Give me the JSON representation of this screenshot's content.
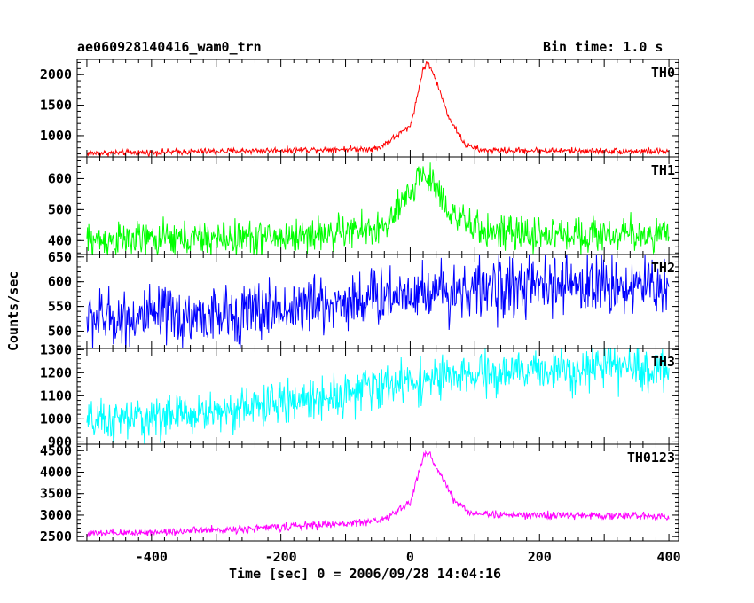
{
  "title": "ae060928140416_wam0_trn",
  "bin_time": "Bin time: 1.0 s",
  "xlabel": "Time [sec] 0 = 2006/09/28 14:04:16",
  "ylabel": "Counts/sec",
  "chart_data": [
    {
      "type": "line",
      "name": "TH0",
      "color": "#ff0000",
      "xlim": [
        -515,
        415
      ],
      "ylim": [
        650,
        2250
      ],
      "yticks": [
        1000,
        1500,
        2000
      ],
      "baseline": [
        [
          -500,
          710
        ],
        [
          -200,
          760
        ],
        [
          -50,
          790
        ],
        [
          0,
          1150
        ],
        [
          10,
          1600
        ],
        [
          20,
          2100
        ],
        [
          28,
          2200
        ],
        [
          40,
          1900
        ],
        [
          60,
          1300
        ],
        [
          85,
          850
        ],
        [
          110,
          760
        ],
        [
          400,
          740
        ]
      ],
      "noise": 25
    },
    {
      "type": "line",
      "name": "TH1",
      "color": "#00ff00",
      "xlim": [
        -515,
        415
      ],
      "ylim": [
        355,
        670
      ],
      "yticks": [
        400,
        500,
        600
      ],
      "baseline": [
        [
          -500,
          400
        ],
        [
          -200,
          410
        ],
        [
          -40,
          440
        ],
        [
          0,
          550
        ],
        [
          15,
          620
        ],
        [
          35,
          590
        ],
        [
          60,
          500
        ],
        [
          90,
          445
        ],
        [
          150,
          420
        ],
        [
          400,
          420
        ]
      ],
      "noise": 28
    },
    {
      "type": "line",
      "name": "TH2",
      "color": "#0000ff",
      "xlim": [
        -515,
        415
      ],
      "ylim": [
        465,
        655
      ],
      "yticks": [
        500,
        550,
        600,
        650
      ],
      "baseline": [
        [
          -500,
          525
        ],
        [
          -300,
          530
        ],
        [
          -200,
          545
        ],
        [
          -100,
          560
        ],
        [
          0,
          580
        ],
        [
          100,
          585
        ],
        [
          200,
          590
        ],
        [
          300,
          595
        ],
        [
          400,
          590
        ]
      ],
      "noise": 30
    },
    {
      "type": "line",
      "name": "TH3",
      "color": "#00ffff",
      "xlim": [
        -515,
        415
      ],
      "ylim": [
        890,
        1305
      ],
      "yticks": [
        900,
        1000,
        1100,
        1200,
        1300
      ],
      "baseline": [
        [
          -500,
          980
        ],
        [
          -300,
          1030
        ],
        [
          -200,
          1070
        ],
        [
          -100,
          1110
        ],
        [
          0,
          1165
        ],
        [
          100,
          1185
        ],
        [
          200,
          1210
        ],
        [
          300,
          1225
        ],
        [
          400,
          1210
        ]
      ],
      "noise": 45
    },
    {
      "type": "line",
      "name": "TH0123",
      "color": "#ff00ff",
      "xlim": [
        -515,
        415
      ],
      "ylim": [
        2400,
        4650
      ],
      "yticks": [
        2500,
        3000,
        3500,
        4000,
        4500
      ],
      "baseline": [
        [
          -500,
          2560
        ],
        [
          -300,
          2650
        ],
        [
          -100,
          2800
        ],
        [
          -40,
          2900
        ],
        [
          0,
          3300
        ],
        [
          10,
          3800
        ],
        [
          22,
          4450
        ],
        [
          30,
          4400
        ],
        [
          45,
          4000
        ],
        [
          70,
          3300
        ],
        [
          95,
          3050
        ],
        [
          150,
          3000
        ],
        [
          400,
          2980
        ]
      ],
      "noise": 45
    }
  ],
  "xticks": [
    -400,
    -200,
    0,
    200,
    400
  ]
}
